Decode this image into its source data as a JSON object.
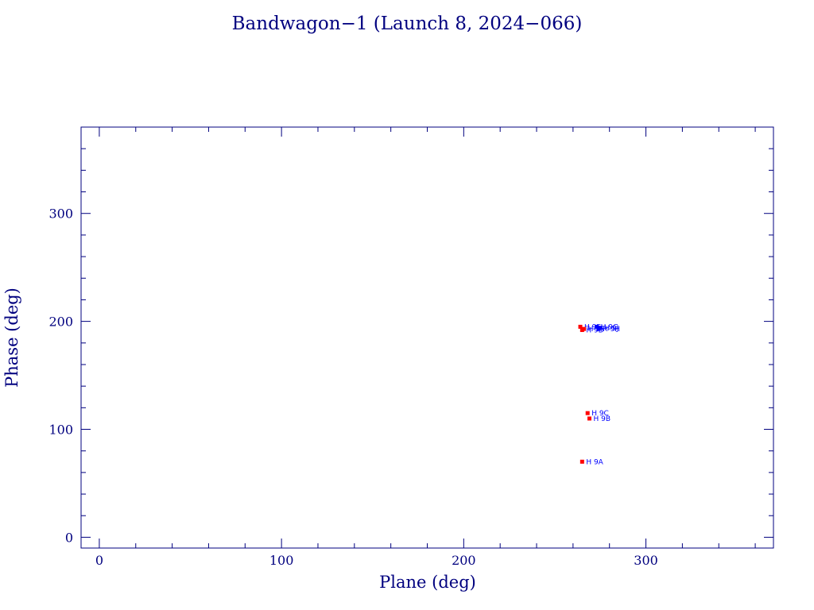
{
  "chart_data": {
    "type": "scatter",
    "title": "Bandwagon−1 (Launch 8, 2024−066)",
    "xlabel": "Plane (deg)",
    "ylabel": "Phase (deg)",
    "xlim": [
      -10,
      370
    ],
    "ylim": [
      -10,
      380
    ],
    "xticks": [
      0,
      100,
      200,
      300
    ],
    "xtick_labels": [
      "0",
      "100",
      "200",
      "300"
    ],
    "yticks": [
      0,
      100,
      200,
      300
    ],
    "ytick_labels": [
      "0",
      "100",
      "200",
      "300"
    ],
    "minor_tick_step": 20,
    "grid": false,
    "colors": {
      "axis": "#00007f",
      "text": "#00007f",
      "marker_red": "#ff0000",
      "marker_blue": "#0000ff"
    },
    "points": [
      {
        "label": "H 9A",
        "x": 265,
        "y": 70,
        "color": "#ff0000"
      },
      {
        "label": "H 9B",
        "x": 269,
        "y": 110,
        "color": "#ff0000"
      },
      {
        "label": "H 9C",
        "x": 268,
        "y": 115,
        "color": "#ff0000"
      },
      {
        "label": "H 9D",
        "x": 265,
        "y": 192,
        "color": "#ff0000"
      },
      {
        "label": "H 9E",
        "x": 264,
        "y": 195,
        "color": "#ff0000"
      },
      {
        "label": "H 9F",
        "x": 266,
        "y": 193,
        "color": "#ff0000"
      },
      {
        "label": "H 9G",
        "x": 273,
        "y": 195,
        "color": "#0000ff"
      },
      {
        "label": "H 9H",
        "x": 274,
        "y": 193,
        "color": "#0000ff"
      },
      {
        "label": "H 9J",
        "x": 275,
        "y": 194,
        "color": "#0000ff"
      }
    ]
  }
}
